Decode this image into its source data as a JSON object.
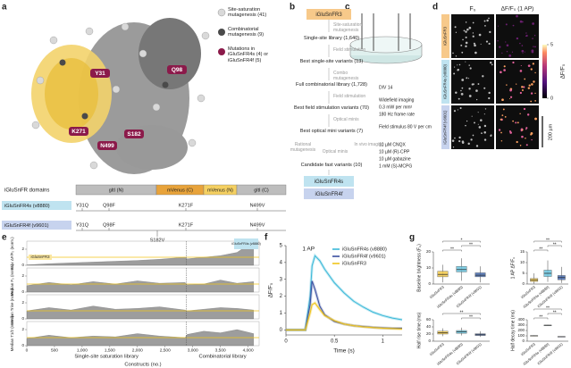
{
  "panel_labels": [
    "a",
    "b",
    "c",
    "d",
    "e",
    "f",
    "g"
  ],
  "a": {
    "legend": [
      "Site-saturation mutagenesis (41)",
      "Combinatorial mutagenesis (9)",
      "Mutations in iGluSnFR4s (4) or iGluSnFR4f (5)"
    ],
    "residues": [
      "Y31",
      "Q98",
      "K271",
      "S182",
      "N499"
    ],
    "domains_title": "iGluSnFR domains",
    "domains": [
      "gltI (N)",
      "mVenus (C)",
      "mVenus (N)",
      "gltI (C)"
    ],
    "variants": [
      {
        "name": "iGluSnFR4s (v8880)",
        "mutations": [
          "Y31Q",
          "Q98F",
          "K271F",
          "N499V"
        ]
      },
      {
        "name": "iGluSnFR4f (v9601)",
        "mutations": [
          "Y31Q",
          "Q98F",
          "K271F",
          "N499V",
          "S182V"
        ]
      }
    ]
  },
  "b": {
    "start": "iGluSnFR3",
    "methods": [
      "Site-saturation mutagenesis",
      "Field stimulation",
      "Combo mutagenesis",
      "Field stimulation",
      "Optical minis"
    ],
    "results": [
      "Single-site library (1,640)",
      "Best single-site variants (13)",
      "Full combinatorial library (1,728)",
      "Best field stimulation variants (70)",
      "Best optical mini variants (7)",
      "Candidate fast variants (10)"
    ],
    "final_methods": [
      "Rational mutagenesis",
      "Optical minis",
      "In vivo imaging"
    ],
    "outputs": [
      "iGluSnFR4s",
      "iGluSnFR4f"
    ]
  },
  "c": {
    "conditions": [
      "DIV 14",
      "Widefield imaging",
      "0.3 mW per mm²",
      "180 Hz frame rate",
      "Field stimulus 80 V per cm",
      "10 µM CNQX",
      "10 µM (R)-CPP",
      "10 µM gabazine",
      "1 mM (S)-MCPG"
    ]
  },
  "d": {
    "columns": [
      "F₀",
      "ΔF/F₀ (1 AP)"
    ],
    "rows": [
      "iGluSnFR3",
      "iGluSnFR4s (v8880)",
      "iGluSnFR4f (v9601)"
    ],
    "colorbar_label": "ΔF/F₀",
    "colorbar_lim": [
      0,
      5
    ],
    "colorbar_ticks": [
      0,
      5
    ],
    "scale_bar": "200 µm"
  },
  "chart_data": [
    {
      "type": "area",
      "x": [
        0,
        400,
        800,
        1200,
        1600,
        2000,
        2400,
        2860,
        2900,
        3200,
        3500,
        3800,
        4100
      ],
      "xlim": [
        0,
        4200
      ],
      "xticks": [
        0,
        500,
        {
          "value": 1000,
          "label": "1,000"
        },
        {
          "value": 1500,
          "label": "1,500"
        },
        {
          "value": 2000,
          "label": "2,000"
        },
        {
          "value": 2500,
          "label": "2,500"
        },
        {
          "value": 3000,
          "label": "3,000"
        },
        {
          "value": 3500,
          "label": "3,500"
        },
        {
          "value": 4000,
          "label": "4,000"
        }
      ],
      "xlabel": "Constructs (no.)",
      "regions": [
        "Single-site saturation library",
        "Combinatorial library"
      ],
      "divider": 2880,
      "color": "#8c8c8c",
      "reference": 1,
      "reference_color": "#f0c419",
      "annotations": [
        "iGluSnFR3",
        "iGluSnFR4s (v8880)"
      ],
      "panels": [
        {
          "ylabel": "Max ΔF/F₀ (norm.)",
          "ylim": [
            0,
            3
          ],
          "yticks": [
            0,
            2
          ],
          "values": [
            0.05,
            0.2,
            0.3,
            0.4,
            0.5,
            0.6,
            0.75,
            1.0,
            0.8,
            1.0,
            1.2,
            1.6,
            3.0
          ]
        },
        {
          "ylabel": "Median F₀ (norm.)",
          "ylim": [
            0,
            3
          ],
          "yticks": [
            0,
            2
          ],
          "values": [
            0.8,
            1.2,
            0.9,
            1.3,
            1.0,
            1.4,
            1.1,
            1.2,
            0.9,
            1.0,
            1.5,
            1.1,
            1.3
          ]
        },
        {
          "ylabel": "Median Trise (norm.)",
          "ylim": [
            0,
            3
          ],
          "yticks": [
            0,
            2
          ],
          "values": [
            1.0,
            1.4,
            1.1,
            1.6,
            1.2,
            1.3,
            1.5,
            1.1,
            1.0,
            1.2,
            1.4,
            1.3,
            1.1
          ]
        },
        {
          "ylabel": "Median T1/2 (norm.)",
          "ylim": [
            0,
            3
          ],
          "yticks": [
            0,
            2
          ],
          "values": [
            0.9,
            1.3,
            1.0,
            1.2,
            1.1,
            1.5,
            1.2,
            1.0,
            1.4,
            1.8,
            1.6,
            2.0,
            1.5
          ]
        }
      ]
    },
    {
      "type": "line",
      "title": "1 AP",
      "xlabel": "Time (s)",
      "ylabel": "ΔF/F₀",
      "x": [
        0,
        0.2,
        0.25,
        0.27,
        0.3,
        0.35,
        0.4,
        0.5,
        0.6,
        0.7,
        0.8,
        0.9,
        1.0,
        1.1,
        1.2
      ],
      "xlim": [
        0,
        1.2
      ],
      "xticks": [
        0,
        0.5,
        1
      ],
      "ylim": [
        -0.3,
        5
      ],
      "yticks": [
        0,
        1,
        2,
        3,
        4,
        5
      ],
      "legend": "upper right",
      "series": [
        {
          "name": "iGluSnFR4s (v8880)",
          "color": "#3ab8d8",
          "values": [
            0,
            0,
            2.0,
            3.8,
            4.4,
            4.1,
            3.6,
            2.8,
            2.2,
            1.7,
            1.35,
            1.05,
            0.85,
            0.7,
            0.6
          ]
        },
        {
          "name": "iGluSnFR4f (v9601)",
          "color": "#3a4fa0",
          "values": [
            0,
            0,
            1.5,
            2.9,
            2.4,
            1.4,
            0.9,
            0.5,
            0.35,
            0.25,
            0.2,
            0.15,
            0.12,
            0.1,
            0.1
          ]
        },
        {
          "name": "iGluSnFR3",
          "color": "#f0c419",
          "values": [
            0,
            0,
            1.0,
            1.5,
            1.6,
            1.2,
            0.85,
            0.55,
            0.35,
            0.25,
            0.18,
            0.14,
            0.1,
            0.08,
            0.05
          ]
        }
      ]
    },
    {
      "type": "box",
      "ylabel": "Baseline brightness (F₀)",
      "categories": [
        "iGluSnFR3",
        "iGluSnFR4s (v8880)",
        "iGluSnFR4f (v9601)"
      ],
      "colors": [
        "#f2c94c",
        "#6cc6e0",
        "#4a6fb5"
      ],
      "ylim": [
        0,
        20
      ],
      "yticks": [
        0,
        10,
        20
      ],
      "boxes": [
        {
          "min": 1,
          "q1": 4.5,
          "median": 6,
          "q3": 8,
          "max": 12
        },
        {
          "min": 2,
          "q1": 7.5,
          "median": 9,
          "q3": 11,
          "max": 16
        },
        {
          "min": 1,
          "q1": 4.5,
          "median": 5.5,
          "q3": 7,
          "max": 11
        }
      ],
      "significance": [
        {
          "pair": [
            0,
            1
          ],
          "label": "**"
        },
        {
          "pair": [
            1,
            2
          ],
          "label": "**"
        },
        {
          "pair": [
            0,
            2
          ],
          "label": "*"
        }
      ]
    },
    {
      "type": "box",
      "ylabel": "1 AP ΔF/F₀",
      "categories": [
        "iGluSnFR3",
        "iGluSnFR4s (v8880)",
        "iGluSnFR4f (v9601)"
      ],
      "colors": [
        "#f2c94c",
        "#6cc6e0",
        "#4a6fb5"
      ],
      "ylim": [
        0,
        15
      ],
      "yticks": [
        0,
        5,
        10,
        15
      ],
      "boxes": [
        {
          "min": 0.2,
          "q1": 1.2,
          "median": 1.8,
          "q3": 2.6,
          "max": 5
        },
        {
          "min": 1,
          "q1": 3.5,
          "median": 5,
          "q3": 6.5,
          "max": 11
        },
        {
          "min": 0.5,
          "q1": 2,
          "median": 3,
          "q3": 4,
          "max": 8
        }
      ],
      "significance": [
        {
          "pair": [
            0,
            1
          ],
          "label": "**"
        },
        {
          "pair": [
            1,
            2
          ],
          "label": "**"
        },
        {
          "pair": [
            0,
            2
          ],
          "label": "**"
        }
      ]
    },
    {
      "type": "box",
      "ylabel": "Half rise time (ms)",
      "categories": [
        "iGluSnFR3",
        "iGluSnFR4s (v8880)",
        "iGluSnFR4f (v9601)"
      ],
      "colors": [
        "#f2c94c",
        "#6cc6e0",
        "#4a6fb5"
      ],
      "ylim": [
        0,
        60
      ],
      "yticks": [
        0,
        20,
        40,
        60
      ],
      "boxes": [
        {
          "min": 14,
          "q1": 20,
          "median": 24,
          "q3": 28,
          "max": 36
        },
        {
          "min": 16,
          "q1": 22,
          "median": 26,
          "q3": 30,
          "max": 38
        },
        {
          "min": 12,
          "q1": 16,
          "median": 18,
          "q3": 21,
          "max": 28
        }
      ],
      "significance": [
        {
          "pair": [
            1,
            2
          ],
          "label": "**"
        },
        {
          "pair": [
            0,
            2
          ],
          "label": "**"
        }
      ]
    },
    {
      "type": "box",
      "ylabel": "Half decay time (ms)",
      "categories": [
        "iGluSnFR3",
        "iGluSnFR4s (v8880)",
        "iGluSnFR4f (v9601)"
      ],
      "colors": [
        "#f2c94c",
        "#6cc6e0",
        "#4a6fb5"
      ],
      "ylim": [
        0,
        400
      ],
      "yticks": [
        0,
        100,
        200,
        300,
        400
      ],
      "boxes": [
        {
          "min": 95,
          "q1": 100,
          "median": 102,
          "q3": 104,
          "max": 110
        },
        {
          "min": 290,
          "q1": 295,
          "median": 298,
          "q3": 300,
          "max": 305
        },
        {
          "min": 80,
          "q1": 83,
          "median": 85,
          "q3": 87,
          "max": 90
        }
      ],
      "significance": [
        {
          "pair": [
            0,
            1
          ],
          "label": "**"
        },
        {
          "pair": [
            1,
            2
          ],
          "label": "**"
        },
        {
          "pair": [
            0,
            2
          ],
          "label": "**"
        }
      ]
    }
  ]
}
